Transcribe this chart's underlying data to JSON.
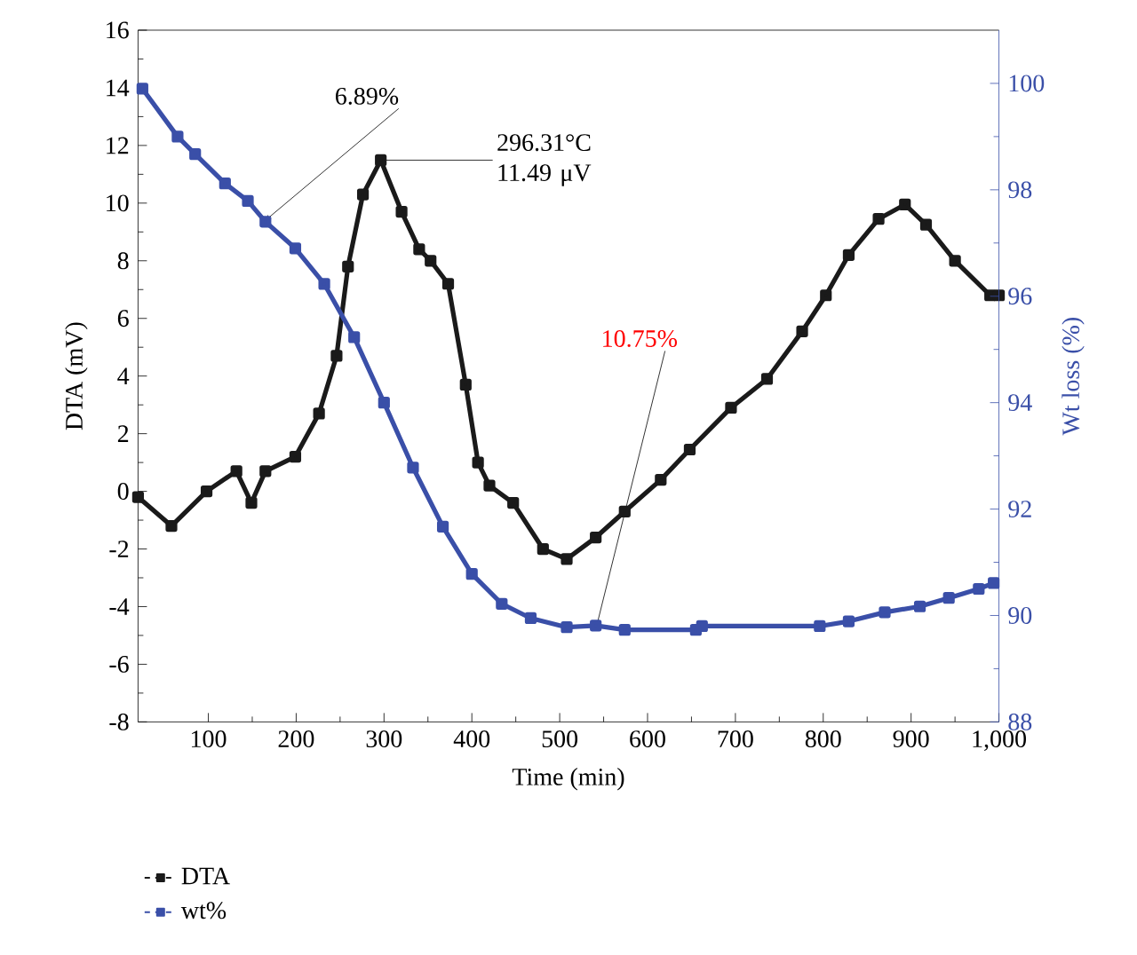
{
  "chart_data": {
    "type": "line",
    "xlabel": "Time (min)",
    "ylabel": "DTA (mV)",
    "y2label": "Wt loss (%)",
    "xlim": [
      20,
      1000
    ],
    "xticks": [
      100,
      200,
      300,
      400,
      500,
      600,
      700,
      800,
      900,
      {
        "value": 1000,
        "label": "1,000"
      }
    ],
    "ylim": [
      -8,
      16
    ],
    "yticks": [
      -8,
      -6,
      -4,
      -2,
      0,
      2,
      4,
      6,
      8,
      10,
      12,
      14,
      16
    ],
    "y2lim": [
      88,
      101
    ],
    "y2ticks": [
      88,
      90,
      92,
      94,
      96,
      98,
      100
    ],
    "marker": "square",
    "legend": "bottom left",
    "series": [
      {
        "name": "DTA",
        "color": "#1a1a1a",
        "x": [
          20,
          58,
          98,
          132,
          149,
          165,
          199,
          226,
          246,
          259,
          276,
          296.31,
          320,
          340,
          353,
          373,
          393,
          407,
          420,
          447,
          481,
          508,
          541,
          574,
          615,
          648,
          695,
          736,
          776,
          803,
          829,
          863,
          893,
          917,
          950,
          990,
          1000
        ],
        "values": [
          -0.2,
          -1.2,
          0,
          0.7,
          -0.4,
          0.7,
          1.2,
          2.7,
          4.7,
          7.8,
          10.3,
          11.49,
          9.7,
          8.4,
          8.0,
          7.2,
          3.7,
          1.0,
          0.2,
          -0.4,
          -2.0,
          -2.35,
          -1.6,
          -0.7,
          0.4,
          1.45,
          2.9,
          3.9,
          5.55,
          6.8,
          8.2,
          9.45,
          9.95,
          9.25,
          8.0,
          6.8,
          6.8
        ]
      },
      {
        "name": "wt%",
        "color": "#3a4fa8",
        "axis": "y2",
        "x": [
          25,
          65,
          85,
          119,
          145,
          165,
          199,
          232,
          266,
          300,
          333,
          367,
          400,
          434,
          467,
          508,
          541,
          574,
          655,
          662,
          796,
          829,
          870,
          910,
          943,
          977,
          994
        ],
        "values": [
          99.9,
          99.0,
          98.67,
          98.12,
          97.79,
          97.4,
          96.9,
          96.23,
          95.23,
          94.0,
          92.78,
          91.67,
          90.78,
          90.22,
          89.95,
          89.78,
          89.81,
          89.73,
          89.73,
          89.8,
          89.8,
          89.89,
          90.06,
          90.17,
          90.33,
          90.5,
          90.61
        ]
      }
    ],
    "annotations": [
      {
        "text": "6.89%",
        "x": 165,
        "y": 9.4
      },
      {
        "text": "296.31°C 11.49 μV",
        "x": 296.31,
        "y": 11.49
      },
      {
        "text": "10.75%",
        "x": 541,
        "y": -4.8
      }
    ]
  }
}
